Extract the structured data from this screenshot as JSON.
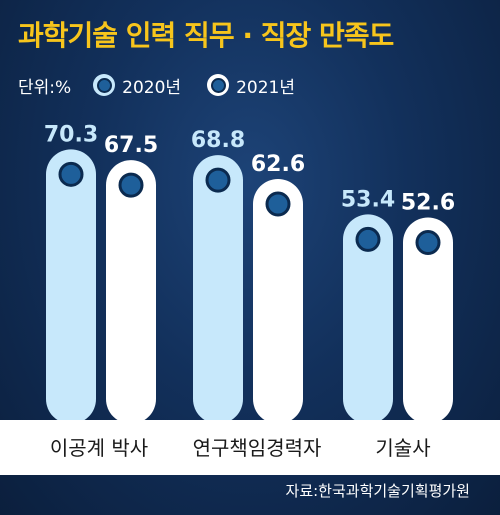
{
  "chart_data": {
    "type": "bar",
    "title": "과학기술 인력 직무 · 직장 만족도",
    "unit": "단위:%",
    "categories": [
      "이공계 박사",
      "연구책임경력자",
      "기술사"
    ],
    "series": [
      {
        "name": "2020년",
        "values": [
          70.3,
          68.8,
          53.4
        ],
        "color": "#c7e8fb",
        "label_color": "#c7e8fb"
      },
      {
        "name": "2021년",
        "values": [
          67.5,
          62.6,
          52.6
        ],
        "color": "#ffffff",
        "label_color": "#ffffff"
      }
    ],
    "data_labels": [
      [
        "70.3",
        "68.8",
        "53.4"
      ],
      [
        "67.5",
        "62.6",
        "52.6"
      ]
    ],
    "ylim": [
      0,
      100
    ],
    "grid": false,
    "legend": "top-left",
    "source": "자료:한국과학기술기획평가원"
  }
}
